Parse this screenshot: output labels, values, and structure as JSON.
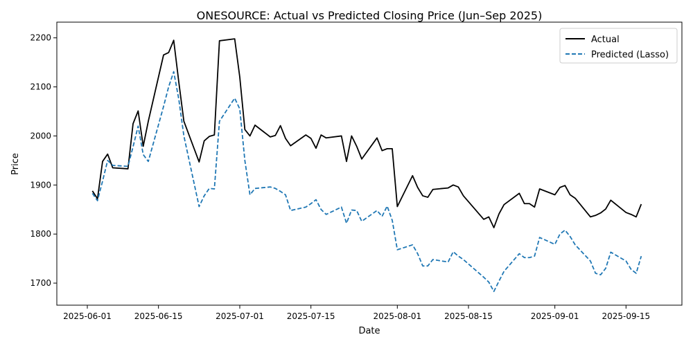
{
  "chart_data": {
    "type": "line",
    "title": "ONESOURCE: Actual vs Predicted Closing Price (Jun–Sep 2025)",
    "xlabel": "Date",
    "ylabel": "Price",
    "xlim": [
      "2025-05-26",
      "2025-09-26"
    ],
    "ylim": [
      1655,
      2232
    ],
    "x_ticks": [
      "2025-06-01",
      "2025-06-15",
      "2025-07-01",
      "2025-07-15",
      "2025-08-01",
      "2025-08-15",
      "2025-09-01",
      "2025-09-15"
    ],
    "y_ticks": [
      1700,
      1800,
      1900,
      2000,
      2100,
      2200
    ],
    "grid": false,
    "legend_position": "top-right",
    "x": [
      "2025-06-02",
      "2025-06-03",
      "2025-06-04",
      "2025-06-05",
      "2025-06-06",
      "2025-06-09",
      "2025-06-10",
      "2025-06-11",
      "2025-06-12",
      "2025-06-13",
      "2025-06-16",
      "2025-06-17",
      "2025-06-18",
      "2025-06-19",
      "2025-06-20",
      "2025-06-23",
      "2025-06-24",
      "2025-06-25",
      "2025-06-26",
      "2025-06-27",
      "2025-06-30",
      "2025-07-01",
      "2025-07-02",
      "2025-07-03",
      "2025-07-04",
      "2025-07-07",
      "2025-07-08",
      "2025-07-09",
      "2025-07-10",
      "2025-07-11",
      "2025-07-14",
      "2025-07-15",
      "2025-07-16",
      "2025-07-17",
      "2025-07-18",
      "2025-07-21",
      "2025-07-22",
      "2025-07-23",
      "2025-07-24",
      "2025-07-25",
      "2025-07-28",
      "2025-07-29",
      "2025-07-30",
      "2025-07-31",
      "2025-08-01",
      "2025-08-04",
      "2025-08-05",
      "2025-08-06",
      "2025-08-07",
      "2025-08-08",
      "2025-08-11",
      "2025-08-12",
      "2025-08-13",
      "2025-08-14",
      "2025-08-18",
      "2025-08-19",
      "2025-08-20",
      "2025-08-21",
      "2025-08-22",
      "2025-08-25",
      "2025-08-26",
      "2025-08-27",
      "2025-08-28",
      "2025-08-29",
      "2025-09-01",
      "2025-09-02",
      "2025-09-03",
      "2025-09-04",
      "2025-09-05",
      "2025-09-08",
      "2025-09-09",
      "2025-09-10",
      "2025-09-11",
      "2025-09-12",
      "2025-09-15",
      "2025-09-16",
      "2025-09-17",
      "2025-09-18"
    ],
    "series": [
      {
        "name": "Actual",
        "color": "#000000",
        "style": "solid",
        "values": [
          1888,
          1872,
          1948,
          1963,
          1935,
          1933,
          2025,
          2051,
          1979,
          2030,
          2165,
          2170,
          2195,
          2110,
          2030,
          1947,
          1990,
          1999,
          2002,
          2194,
          2198,
          2120,
          2013,
          2000,
          2022,
          1998,
          2001,
          2021,
          1995,
          1980,
          2002,
          1995,
          1975,
          2002,
          1996,
          2000,
          1948,
          2000,
          1979,
          1953,
          1996,
          1970,
          1974,
          1974,
          1856,
          1919,
          1895,
          1878,
          1875,
          1891,
          1894,
          1900,
          1896,
          1878,
          1830,
          1835,
          1813,
          1841,
          1860,
          1883,
          1862,
          1862,
          1855,
          1892,
          1880,
          1895,
          1899,
          1880,
          1873,
          1835,
          1838,
          1843,
          1851,
          1869,
          1844,
          1840,
          1835,
          1861
        ]
      },
      {
        "name": "Predicted (Lasso)",
        "color": "#1f77b4",
        "style": "dashed",
        "values": [
          1883,
          1868,
          1908,
          1950,
          1940,
          1938,
          1978,
          2020,
          1962,
          1948,
          2060,
          2100,
          2131,
          2075,
          2000,
          1856,
          1878,
          1893,
          1892,
          2030,
          2077,
          2055,
          1950,
          1880,
          1893,
          1896,
          1893,
          1887,
          1880,
          1848,
          1855,
          1862,
          1870,
          1850,
          1840,
          1855,
          1822,
          1849,
          1848,
          1826,
          1848,
          1836,
          1857,
          1828,
          1768,
          1778,
          1760,
          1735,
          1735,
          1748,
          1743,
          1764,
          1755,
          1748,
          1712,
          1702,
          1683,
          1704,
          1724,
          1760,
          1752,
          1752,
          1755,
          1793,
          1779,
          1800,
          1808,
          1795,
          1778,
          1745,
          1720,
          1717,
          1730,
          1763,
          1745,
          1728,
          1720,
          1755
        ]
      }
    ],
    "legend": [
      "Actual",
      "Predicted (Lasso)"
    ]
  }
}
